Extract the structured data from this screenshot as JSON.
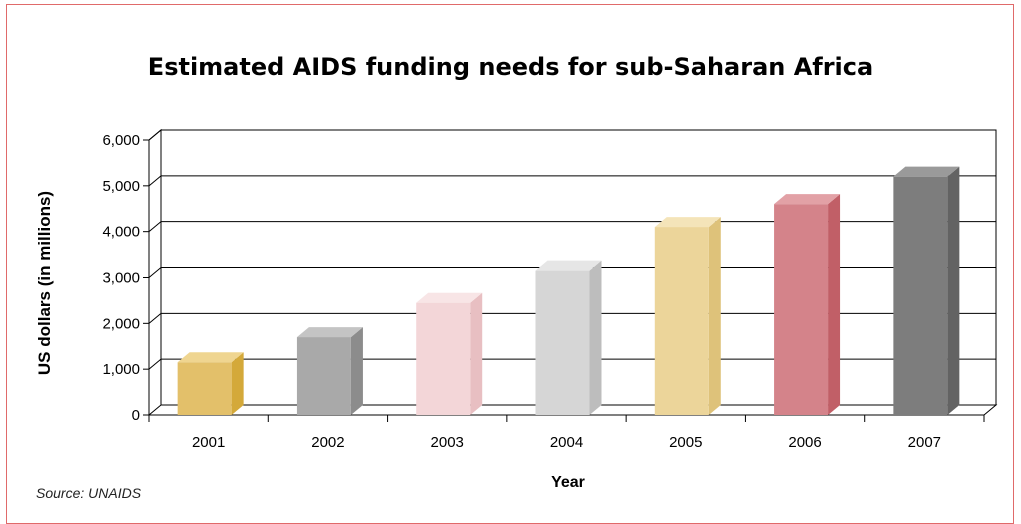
{
  "chart_data": {
    "type": "bar",
    "title": "Estimated AIDS funding needs for sub-Saharan Africa",
    "xlabel": "Year",
    "ylabel": "US dollars (in millions)",
    "categories": [
      "2001",
      "2002",
      "2003",
      "2004",
      "2005",
      "2006",
      "2007"
    ],
    "values": [
      1150,
      1700,
      2450,
      3150,
      4100,
      4600,
      5200
    ],
    "ylim": [
      0,
      6000
    ],
    "yticks": [
      "0",
      "1,000",
      "2,000",
      "3,000",
      "4,000",
      "5,000",
      "6,000"
    ],
    "grid": true,
    "legend": "none",
    "colors": [
      {
        "front": "#e3c06a",
        "side": "#d4a93a",
        "top": "#efd590"
      },
      {
        "front": "#a9a9a9",
        "side": "#8c8c8c",
        "top": "#c4c4c4"
      },
      {
        "front": "#f3d6d8",
        "side": "#e8bfc2",
        "top": "#f8e5e6"
      },
      {
        "front": "#d6d6d6",
        "side": "#bdbdbd",
        "top": "#e6e6e6"
      },
      {
        "front": "#ecd59a",
        "side": "#dec27a",
        "top": "#f4e4b9"
      },
      {
        "front": "#d4838a",
        "side": "#c15f67",
        "top": "#e2a1a6"
      },
      {
        "front": "#7d7d7d",
        "side": "#636363",
        "top": "#9a9a9a"
      }
    ]
  },
  "source": "Source: UNAIDS"
}
